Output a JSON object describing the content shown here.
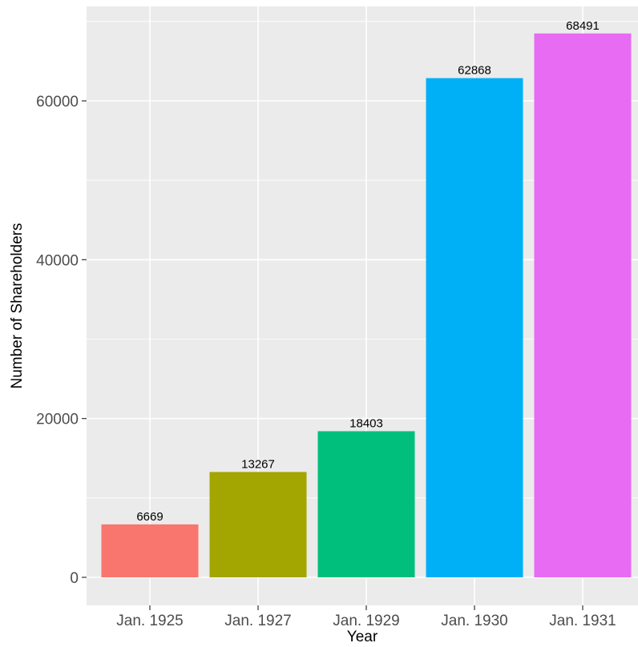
{
  "chart_data": {
    "type": "bar",
    "categories": [
      "Jan. 1925",
      "Jan. 1927",
      "Jan. 1929",
      "Jan. 1930",
      "Jan. 1931"
    ],
    "values": [
      6669,
      13267,
      18403,
      62868,
      68491
    ],
    "data_labels": [
      "6669",
      "13267",
      "18403",
      "62868",
      "68491"
    ],
    "colors": [
      "#F8766D",
      "#A3A500",
      "#00BF7D",
      "#00B0F6",
      "#E76BF3"
    ],
    "xlabel": "Year",
    "ylabel": "Number of Shareholders",
    "ylim": [
      0,
      70000
    ],
    "yticks": [
      0,
      20000,
      40000,
      60000
    ],
    "ytick_labels": [
      "0",
      "20000",
      "40000",
      "60000"
    ],
    "grid": true,
    "panel_background": "#EBEBEB",
    "grid_color": "#FFFFFF"
  }
}
